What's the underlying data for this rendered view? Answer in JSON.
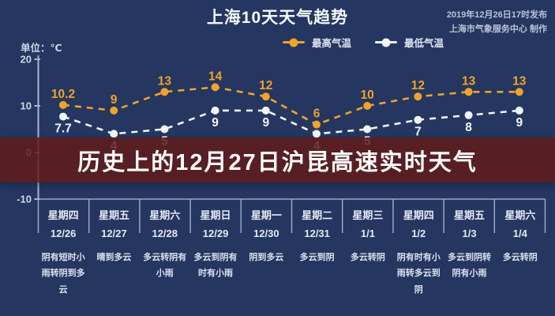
{
  "header": {
    "title": "上海10天天气趋势",
    "publish_line1": "2019年12月26日17时发布",
    "publish_line2": "上海市气象服务中心 制作",
    "unit_label": "单位：℃"
  },
  "legend": {
    "items": [
      {
        "label": "最高气温",
        "color": "#f0a32a"
      },
      {
        "label": "最低气温",
        "color": "#f2f5fa"
      }
    ]
  },
  "overlay_banner": {
    "text": "历史上的12月27日沪昆高速实时天气",
    "background": "#5f1c1b",
    "text_color": "#ffffff"
  },
  "chart_data": {
    "type": "line",
    "title": "上海10天天气趋势",
    "unit": "℃",
    "line_style": "dashed",
    "grid": false,
    "legend_position": "top",
    "categories": [
      "12/26",
      "12/27",
      "12/28",
      "12/29",
      "12/30",
      "12/31",
      "1/1",
      "1/2",
      "1/3",
      "1/4"
    ],
    "series": [
      {
        "name": "最高气温",
        "color": "#f0a32a",
        "values": [
          10.2,
          9,
          13,
          14,
          12,
          6,
          10,
          12,
          13,
          13
        ]
      },
      {
        "name": "最低气温",
        "color": "#f2f5fa",
        "values": [
          7.7,
          4,
          5,
          9,
          9,
          4,
          5,
          7,
          8,
          9
        ]
      }
    ],
    "y_axis": {
      "ticks": [
        20,
        10,
        0,
        -10
      ],
      "range": [
        -10,
        20
      ]
    }
  },
  "forecast_table": {
    "days": [
      {
        "weekday": "星期四",
        "date": "12/26",
        "weather": "阴有短时小雨转阴到多云"
      },
      {
        "weekday": "星期五",
        "date": "12/27",
        "weather": "晴到多云"
      },
      {
        "weekday": "星期六",
        "date": "12/28",
        "weather": "多云转阴有小雨"
      },
      {
        "weekday": "星期日",
        "date": "12/29",
        "weather": "多云到阴有时有小雨"
      },
      {
        "weekday": "星期一",
        "date": "12/30",
        "weather": "阴到多云"
      },
      {
        "weekday": "星期二",
        "date": "12/31",
        "weather": "多云到阴"
      },
      {
        "weekday": "星期三",
        "date": "1/1",
        "weather": "多云转阴"
      },
      {
        "weekday": "星期四",
        "date": "1/2",
        "weather": "阴有时有小雨转多云到阴"
      },
      {
        "weekday": "星期五",
        "date": "1/3",
        "weather": "多云到阴转阴有小雨"
      },
      {
        "weekday": "星期六",
        "date": "1/4",
        "weather": "多云转阴"
      }
    ]
  },
  "colors": {
    "background": "#253660",
    "axis": "#a9b5cf",
    "grid_line": "#97a8c6",
    "tick_label": "#cfd8e8"
  }
}
